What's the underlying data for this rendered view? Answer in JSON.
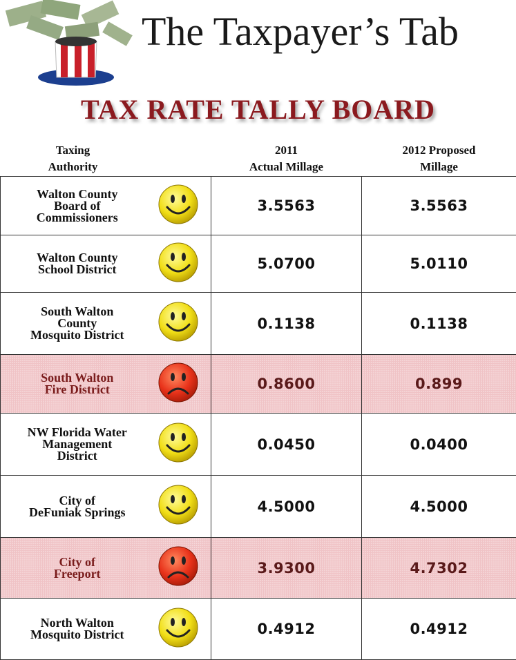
{
  "header": {
    "title": "The Taxpayer’s Tab",
    "subtitle": "TAX RATE TALLY BOARD"
  },
  "table": {
    "columns": [
      "Taxing\nAuthority",
      "2011\nActual Millage",
      "2012 Proposed\nMillage"
    ],
    "rows": [
      [
        "Walton County\nBoard of\nCommissioners",
        "3.5563",
        "3.5563"
      ],
      [
        "Walton County\nSchool District",
        "5.0700",
        "5.0110"
      ],
      [
        "South Walton\nCounty\nMosquito District",
        "0.1138",
        "0.1138"
      ],
      [
        "South Walton\nFire District",
        "0.8600",
        "0.899"
      ],
      [
        "NW Florida Water\nManagement\nDistrict",
        "0.0450",
        "0.0400"
      ],
      [
        "City of\nDeFuniak Springs",
        "4.5000",
        "4.5000"
      ],
      [
        "City of\nFreeport",
        "3.9300",
        "4.7302"
      ],
      [
        "North Walton\nMosquito District",
        "0.4912",
        "0.4912"
      ]
    ]
  }
}
